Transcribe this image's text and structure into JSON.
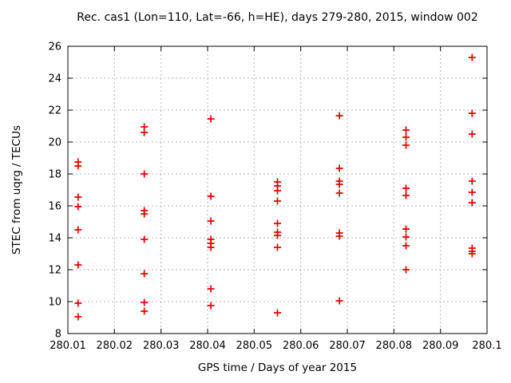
{
  "colors": {
    "background": "#ffffff",
    "marker": "#e60000",
    "grid": "#b3b3b3",
    "frame": "#000000",
    "text": "#000000"
  },
  "chart_data": {
    "type": "scatter",
    "title": "Rec. cas1 (Lon=110, Lat=-66, h=HE), days 279-280, 2015, window 002",
    "xlabel": "GPS time / Days of year 2015",
    "ylabel": "STEC from uqrg / TECUs",
    "xlim": [
      280.01,
      280.1
    ],
    "ylim": [
      8,
      26
    ],
    "x_ticks": [
      280.01,
      280.02,
      280.03,
      280.04,
      280.05,
      280.06,
      280.07,
      280.08,
      280.09,
      280.1
    ],
    "x_tick_labels": [
      "280.01",
      "280.02",
      "280.03",
      "280.04",
      "280.05",
      "280.06",
      "280.07",
      "280.08",
      "280.09",
      "280.1"
    ],
    "y_ticks": [
      8,
      10,
      12,
      14,
      16,
      18,
      20,
      22,
      24,
      26
    ],
    "y_tick_labels": [
      "8",
      "10",
      "12",
      "14",
      "16",
      "18",
      "20",
      "22",
      "24",
      "26"
    ],
    "grid": true,
    "legend": "none",
    "marker_shape": "plus",
    "series": [
      {
        "points": [
          [
            280.0122,
            18.75
          ],
          [
            280.0122,
            18.5
          ],
          [
            280.0122,
            16.55
          ],
          [
            280.0122,
            15.95
          ],
          [
            280.0122,
            14.5
          ],
          [
            280.0122,
            12.3
          ],
          [
            280.0122,
            9.9
          ],
          [
            280.0122,
            9.05
          ],
          [
            280.0264,
            20.95
          ],
          [
            280.0264,
            20.6
          ],
          [
            280.0264,
            18.0
          ],
          [
            280.0264,
            15.7
          ],
          [
            280.0264,
            15.5
          ],
          [
            280.0264,
            13.9
          ],
          [
            280.0264,
            11.75
          ],
          [
            280.0264,
            9.95
          ],
          [
            280.0264,
            9.4
          ],
          [
            280.0407,
            21.45
          ],
          [
            280.0407,
            16.6
          ],
          [
            280.0407,
            15.05
          ],
          [
            280.0407,
            13.9
          ],
          [
            280.0407,
            13.65
          ],
          [
            280.0407,
            13.4
          ],
          [
            280.0407,
            10.8
          ],
          [
            280.0407,
            9.75
          ],
          [
            280.055,
            17.5
          ],
          [
            280.055,
            17.25
          ],
          [
            280.055,
            16.95
          ],
          [
            280.055,
            16.3
          ],
          [
            280.055,
            14.9
          ],
          [
            280.055,
            14.35
          ],
          [
            280.055,
            14.15
          ],
          [
            280.055,
            13.4
          ],
          [
            280.055,
            9.3
          ],
          [
            280.0683,
            21.65
          ],
          [
            280.0683,
            18.35
          ],
          [
            280.0683,
            17.55
          ],
          [
            280.0683,
            17.35
          ],
          [
            280.0683,
            16.8
          ],
          [
            280.0683,
            14.3
          ],
          [
            280.0683,
            14.1
          ],
          [
            280.0683,
            10.05
          ],
          [
            280.0826,
            20.75
          ],
          [
            280.0826,
            20.3
          ],
          [
            280.0826,
            19.8
          ],
          [
            280.0826,
            17.1
          ],
          [
            280.0826,
            16.65
          ],
          [
            280.0826,
            14.55
          ],
          [
            280.0826,
            14.05
          ],
          [
            280.0826,
            13.5
          ],
          [
            280.0826,
            12.0
          ],
          [
            280.0968,
            25.3
          ],
          [
            280.0968,
            21.8
          ],
          [
            280.0968,
            20.5
          ],
          [
            280.0968,
            17.55
          ],
          [
            280.0968,
            16.85
          ],
          [
            280.0968,
            16.2
          ],
          [
            280.0968,
            13.35
          ],
          [
            280.0968,
            13.15
          ],
          [
            280.0968,
            13.0
          ]
        ]
      }
    ]
  }
}
